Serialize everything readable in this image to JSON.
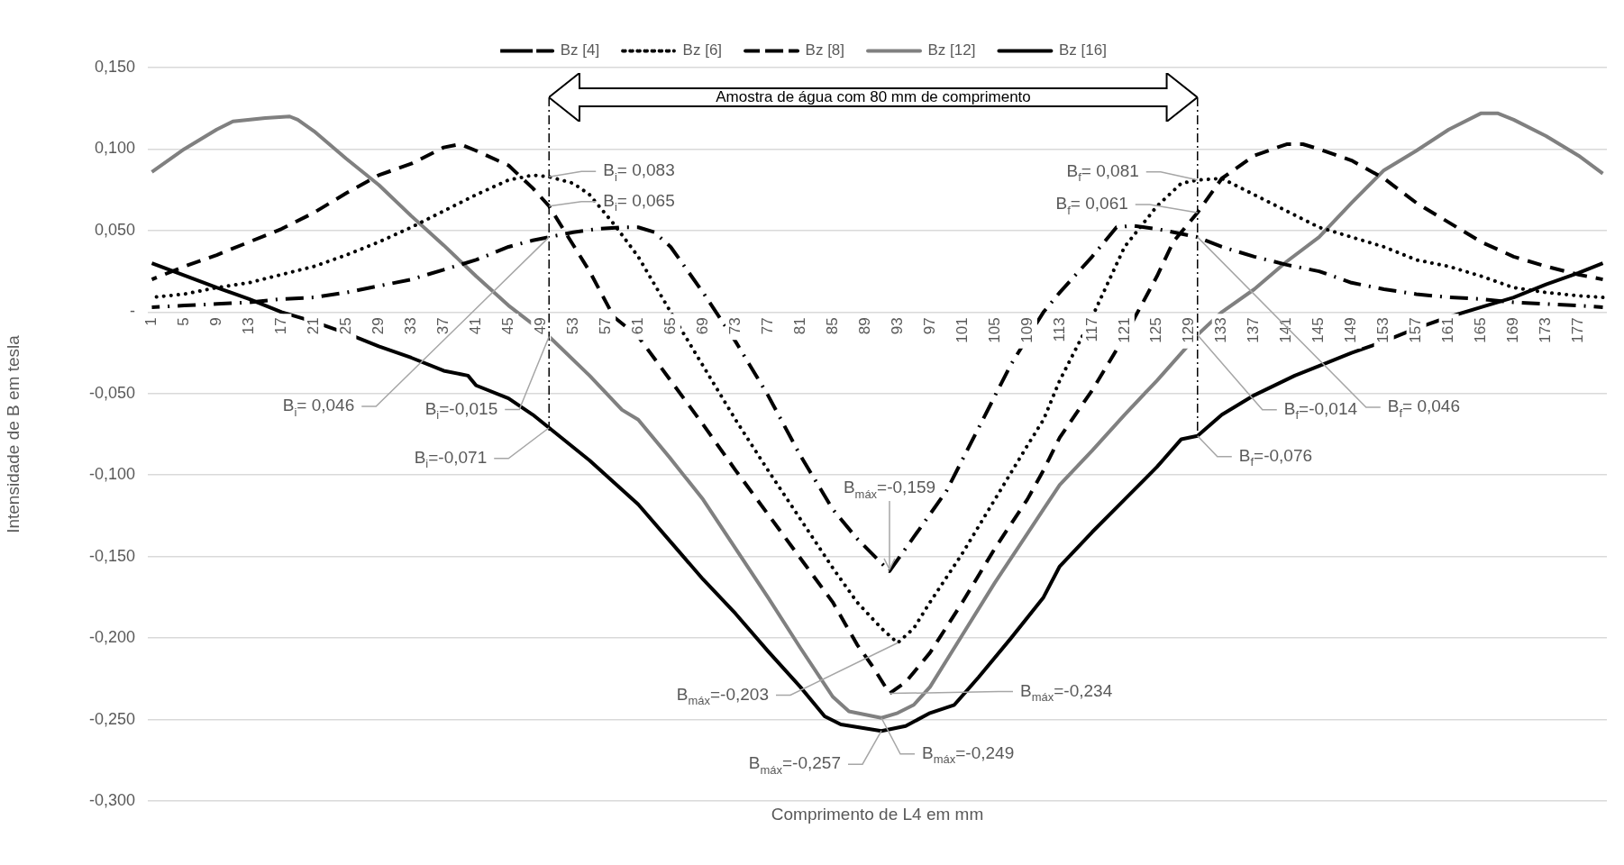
{
  "chart_data": {
    "type": "line",
    "xlabel": "Comprimento de L4 em mm",
    "ylabel": "Intensidade de B em tesla",
    "xlim": [
      0.5,
      180.5
    ],
    "xticks": [
      1,
      5,
      9,
      13,
      17,
      21,
      25,
      29,
      33,
      37,
      41,
      45,
      49,
      53,
      57,
      61,
      65,
      69,
      73,
      77,
      81,
      85,
      89,
      93,
      97,
      101,
      105,
      109,
      113,
      117,
      121,
      125,
      129,
      133,
      137,
      141,
      145,
      149,
      153,
      157,
      161,
      165,
      169,
      173,
      177
    ],
    "ylim": [
      -0.3,
      0.15
    ],
    "yticks": [
      {
        "value": -0.3,
        "label": "-0,300"
      },
      {
        "value": -0.25,
        "label": "-0,250"
      },
      {
        "value": -0.2,
        "label": "-0,200"
      },
      {
        "value": -0.15,
        "label": "-0,150"
      },
      {
        "value": -0.1,
        "label": "-0,100"
      },
      {
        "value": -0.05,
        "label": "-0,050"
      },
      {
        "value": 0,
        "label": "-"
      },
      {
        "value": 0.05,
        "label": "0,050"
      },
      {
        "value": 0.1,
        "label": "0,100"
      },
      {
        "value": 0.15,
        "label": "0,150"
      }
    ],
    "grid": "y",
    "legend": "top",
    "marker": "none",
    "series": [
      {
        "name": "Bz [4]",
        "color": "#000000",
        "line_style": "dashdot",
        "x": [
          1,
          5,
          9,
          13,
          17,
          21,
          25,
          29,
          33,
          37,
          41,
          45,
          48,
          50,
          53,
          56,
          59,
          61,
          63,
          65,
          69,
          73,
          77,
          81,
          85,
          88,
          92,
          95,
          99,
          103,
          107,
          111,
          113,
          117,
          120,
          122,
          125,
          130,
          133,
          137,
          141,
          145,
          149,
          153,
          157,
          161,
          165,
          169,
          173,
          177,
          180
        ],
        "values": [
          0.003,
          0.004,
          0.005,
          0.006,
          0.008,
          0.009,
          0.012,
          0.016,
          0.02,
          0.026,
          0.032,
          0.04,
          0.044,
          0.046,
          0.049,
          0.051,
          0.052,
          0.052,
          0.049,
          0.04,
          0.012,
          -0.018,
          -0.051,
          -0.088,
          -0.121,
          -0.139,
          -0.159,
          -0.138,
          -0.11,
          -0.071,
          -0.032,
          0.0,
          0.012,
          0.034,
          0.052,
          0.053,
          0.051,
          0.046,
          0.04,
          0.034,
          0.029,
          0.025,
          0.018,
          0.014,
          0.011,
          0.009,
          0.008,
          0.006,
          0.005,
          0.004,
          0.003
        ]
      },
      {
        "name": "Bz [6]",
        "color": "#000000",
        "line_style": "dotted",
        "x": [
          1,
          5,
          9,
          13,
          17,
          21,
          25,
          29,
          33,
          37,
          41,
          45,
          48,
          50,
          53,
          55,
          58,
          61,
          65,
          69,
          73,
          77,
          81,
          85,
          88,
          91,
          93,
          95,
          97,
          101,
          105,
          109,
          111,
          113,
          117,
          121,
          125,
          128,
          130,
          133,
          137,
          141,
          145,
          149,
          153,
          157,
          161,
          165,
          169,
          173,
          177,
          180
        ],
        "values": [
          0.009,
          0.011,
          0.015,
          0.018,
          0.023,
          0.028,
          0.035,
          0.043,
          0.052,
          0.062,
          0.072,
          0.081,
          0.084,
          0.083,
          0.079,
          0.072,
          0.054,
          0.034,
          0.0,
          -0.033,
          -0.066,
          -0.097,
          -0.127,
          -0.157,
          -0.178,
          -0.194,
          -0.203,
          -0.194,
          -0.178,
          -0.148,
          -0.115,
          -0.082,
          -0.066,
          -0.042,
          -0.003,
          0.04,
          0.065,
          0.079,
          0.081,
          0.082,
          0.072,
          0.062,
          0.052,
          0.046,
          0.04,
          0.032,
          0.028,
          0.022,
          0.015,
          0.012,
          0.01,
          0.009
        ]
      },
      {
        "name": "Bz [8]",
        "color": "#000000",
        "line_style": "dashed",
        "x": [
          1,
          5,
          9,
          13,
          17,
          21,
          25,
          29,
          33,
          37,
          39,
          41,
          45,
          48,
          50,
          52,
          55,
          58,
          61,
          65,
          69,
          73,
          77,
          81,
          85,
          88,
          90,
          92,
          94,
          97,
          101,
          105,
          109,
          111,
          113,
          117,
          121,
          125,
          127,
          130,
          133,
          137,
          141,
          143,
          145,
          149,
          153,
          157,
          161,
          165,
          169,
          173,
          177,
          180
        ],
        "values": [
          0.02,
          0.028,
          0.035,
          0.043,
          0.051,
          0.061,
          0.073,
          0.084,
          0.091,
          0.101,
          0.103,
          0.099,
          0.09,
          0.076,
          0.065,
          0.049,
          0.025,
          -0.003,
          -0.015,
          -0.042,
          -0.069,
          -0.097,
          -0.124,
          -0.151,
          -0.178,
          -0.204,
          -0.218,
          -0.234,
          -0.227,
          -0.209,
          -0.178,
          -0.145,
          -0.115,
          -0.097,
          -0.077,
          -0.048,
          -0.015,
          0.022,
          0.043,
          0.061,
          0.082,
          0.096,
          0.103,
          0.103,
          0.1,
          0.093,
          0.082,
          0.067,
          0.055,
          0.043,
          0.034,
          0.028,
          0.023,
          0.02
        ]
      },
      {
        "name": "Bz [12]",
        "color": "#808080",
        "line_style": "solid",
        "x": [
          1,
          5,
          9,
          11,
          15,
          18,
          19,
          21,
          25,
          29,
          33,
          37,
          41,
          45,
          50,
          55,
          59,
          61,
          65,
          69,
          73,
          77,
          81,
          85,
          87,
          91,
          93,
          95,
          97,
          101,
          105,
          109,
          111,
          113,
          117,
          121,
          125,
          130,
          133,
          137,
          141,
          145,
          149,
          153,
          157,
          161,
          165,
          167,
          169,
          173,
          177,
          180
        ],
        "values": [
          0.086,
          0.1,
          0.112,
          0.117,
          0.119,
          0.12,
          0.118,
          0.111,
          0.094,
          0.078,
          0.059,
          0.041,
          0.022,
          0.004,
          -0.015,
          -0.039,
          -0.06,
          -0.066,
          -0.09,
          -0.115,
          -0.145,
          -0.175,
          -0.206,
          -0.236,
          -0.245,
          -0.249,
          -0.246,
          -0.241,
          -0.23,
          -0.198,
          -0.166,
          -0.136,
          -0.121,
          -0.106,
          -0.085,
          -0.063,
          -0.042,
          -0.014,
          0.0,
          0.014,
          0.031,
          0.046,
          0.067,
          0.087,
          0.099,
          0.112,
          0.122,
          0.122,
          0.118,
          0.108,
          0.096,
          0.085
        ]
      },
      {
        "name": "Bz [16]",
        "color": "#000000",
        "line_style": "solid",
        "x": [
          1,
          9,
          13,
          17,
          21,
          25,
          29,
          33,
          37,
          40,
          41,
          45,
          48,
          50,
          55,
          59,
          61,
          65,
          69,
          73,
          77,
          81,
          84,
          86,
          91,
          94,
          97,
          100,
          103,
          107,
          111,
          113,
          117,
          121,
          125,
          128,
          130,
          133,
          137,
          142,
          145,
          149,
          153,
          157,
          161,
          165,
          169,
          173,
          177,
          180
        ],
        "values": [
          0.03,
          0.015,
          0.008,
          0.0,
          -0.006,
          -0.013,
          -0.021,
          -0.028,
          -0.036,
          -0.039,
          -0.045,
          -0.053,
          -0.063,
          -0.071,
          -0.091,
          -0.109,
          -0.118,
          -0.141,
          -0.164,
          -0.185,
          -0.208,
          -0.23,
          -0.248,
          -0.253,
          -0.257,
          -0.254,
          -0.246,
          -0.241,
          -0.224,
          -0.2,
          -0.175,
          -0.156,
          -0.135,
          -0.115,
          -0.095,
          -0.078,
          -0.076,
          -0.063,
          -0.051,
          -0.039,
          -0.033,
          -0.025,
          -0.018,
          -0.01,
          -0.003,
          0.003,
          0.009,
          0.017,
          0.024,
          0.03
        ]
      }
    ],
    "ref_lines": [
      {
        "axis": "x",
        "value": 50,
        "line_style": "dashdot",
        "color": "#000000"
      },
      {
        "axis": "x",
        "value": 130,
        "line_style": "dashdot",
        "color": "#000000"
      }
    ],
    "annotations": [
      {
        "text": "B$_{i}$= 0,083",
        "x": 50,
        "y": 0.083
      },
      {
        "text": "B$_{i}$= 0,065",
        "x": 50,
        "y": 0.065
      },
      {
        "text": "B$_{i}$= 0,046",
        "x": 50,
        "y": 0.046
      },
      {
        "text": "B$_{i}$=-0,015",
        "x": 50,
        "y": -0.015
      },
      {
        "text": "B$_{i}$=-0,071",
        "x": 50,
        "y": -0.071
      },
      {
        "text": "B$_{máx}$=-0,159",
        "x": 92,
        "y": -0.159
      },
      {
        "text": "B$_{f}$= 0,081",
        "x": 130,
        "y": 0.081
      },
      {
        "text": "B$_{f}$= 0,061",
        "x": 130,
        "y": 0.061
      },
      {
        "text": "B$_{f}$=-0,014",
        "x": 130,
        "y": -0.014
      },
      {
        "text": "B$_{f}$= 0,046",
        "x": 130,
        "y": 0.046
      },
      {
        "text": "B$_{f}$=-0,076",
        "x": 130,
        "y": -0.076
      },
      {
        "text": "B$_{máx}$=-0,203",
        "x": 93,
        "y": -0.203
      },
      {
        "text": "B$_{máx}$=-0,234",
        "x": 92,
        "y": -0.234
      },
      {
        "text": "B$_{máx}$=-0,257",
        "x": 91,
        "y": -0.257
      },
      {
        "text": "B$_{máx}$=-0,249",
        "x": 91,
        "y": -0.249
      },
      "Amostra de água com 80 mm de comprimento"
    ]
  }
}
